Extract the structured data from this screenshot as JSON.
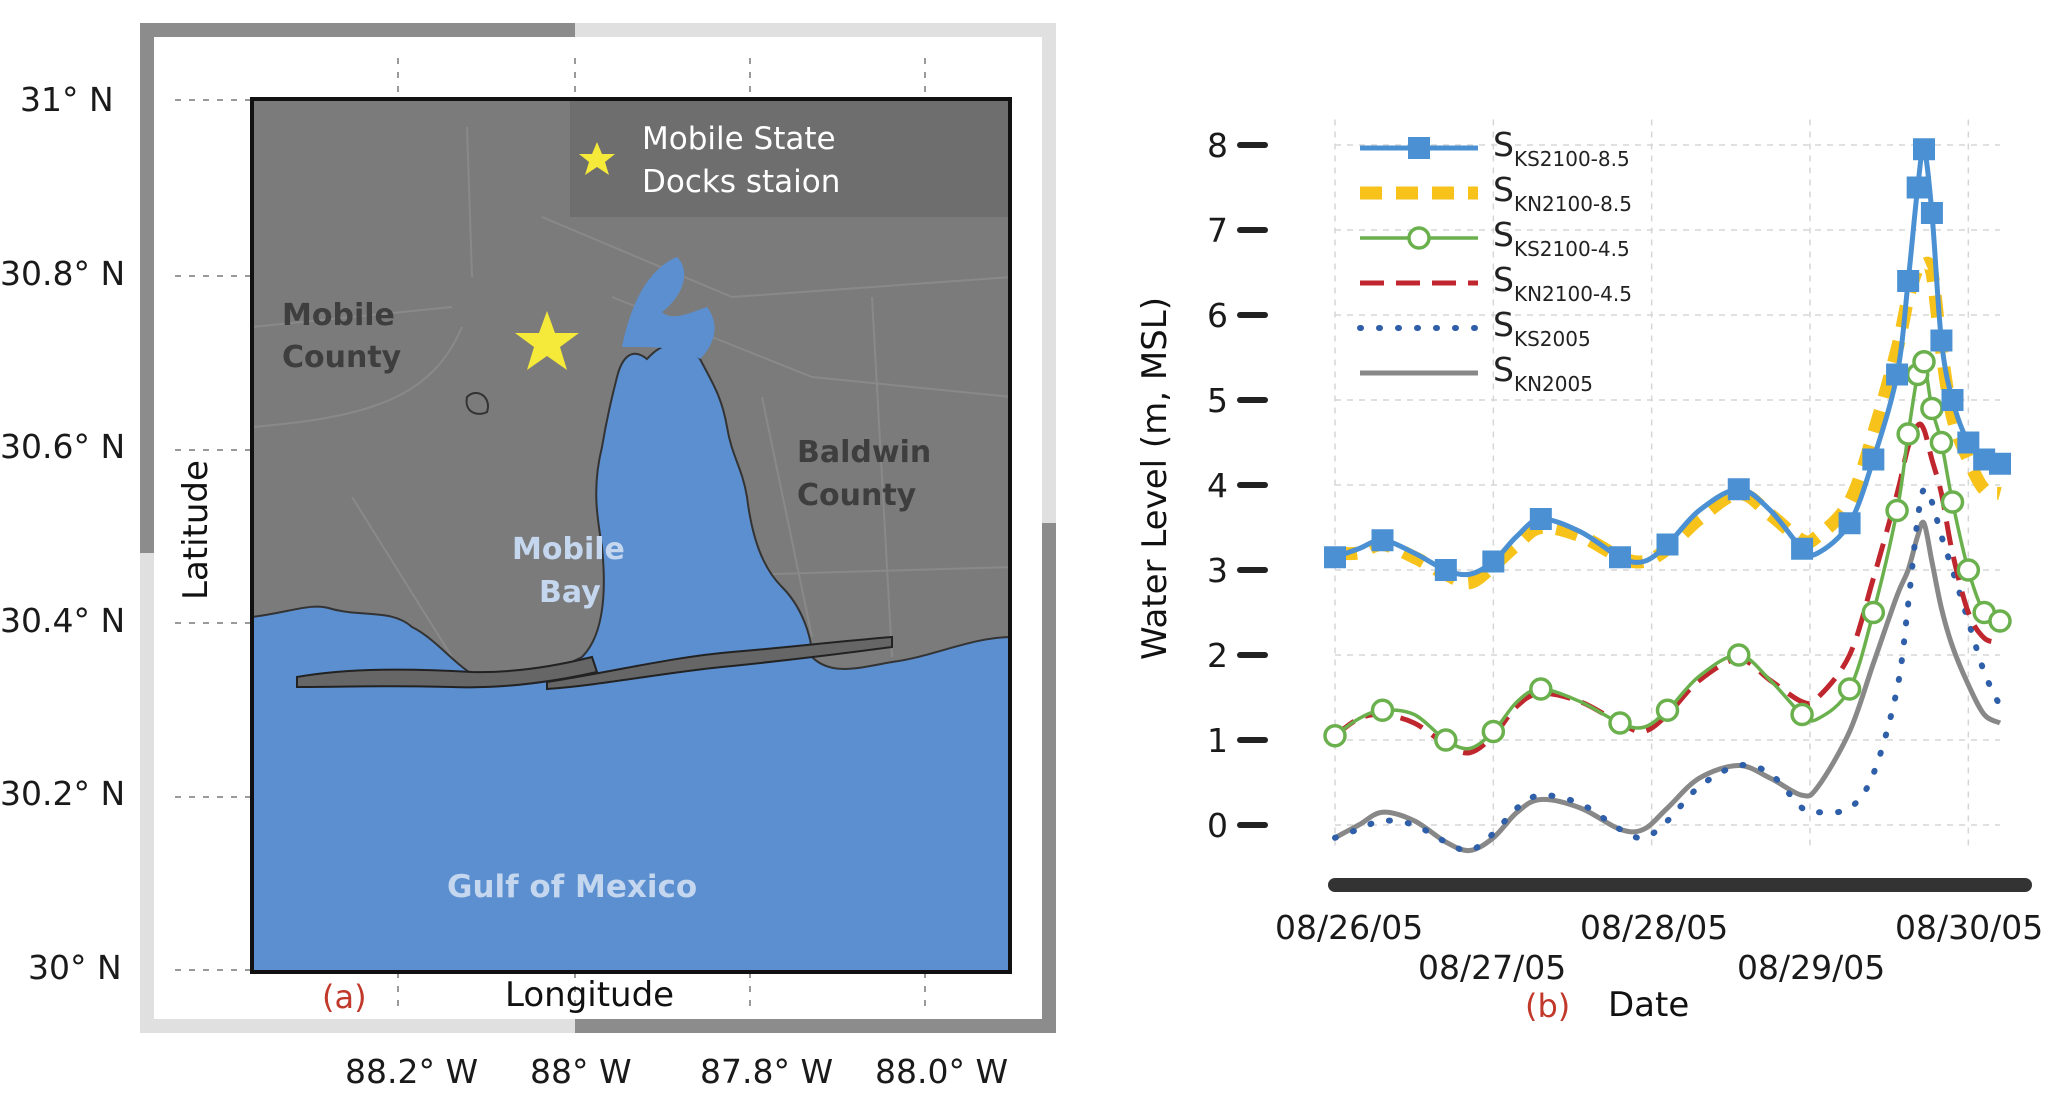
{
  "map": {
    "panel_label": "(a)",
    "xlabel": "Longitude",
    "ylabel": "Latitude",
    "lat_ticks": [
      "31° N",
      "30.8° N",
      "30.6° N",
      "30.4° N",
      "30.2° N",
      "30° N"
    ],
    "lon_ticks": [
      "88.2° W",
      "88° W",
      "87.8° W",
      "88.0° W"
    ],
    "legend_text_line1": "Mobile State",
    "legend_text_line2": "Docks staion",
    "labels": {
      "mobile_county_1": "Mobile",
      "mobile_county_2": "County",
      "baldwin_county_1": "Baldwin",
      "baldwin_county_2": "County",
      "mobile_bay_1": "Mobile",
      "mobile_bay_2": "Bay",
      "gulf": "Gulf of Mexico"
    },
    "colors": {
      "water": "#5b8fcf",
      "land": "#7b7b7b",
      "star": "#f5e93a"
    }
  },
  "chart": {
    "panel_label": "(b)",
    "xlabel": "Date",
    "ylabel": "Water Level (m, MSL)",
    "y_ticks": [
      "0",
      "1",
      "2",
      "3",
      "4",
      "5",
      "6",
      "7",
      "8"
    ],
    "x_ticks_upper": [
      "08/26/05",
      "08/28/05",
      "08/30/05"
    ],
    "x_ticks_lower": [
      "08/27/05",
      "08/29/05"
    ],
    "legend": [
      {
        "main": "S",
        "sub": "KS2100-8.5"
      },
      {
        "main": "S",
        "sub": "KN2100-8.5"
      },
      {
        "main": "S",
        "sub": "KS2100-4.5"
      },
      {
        "main": "S",
        "sub": "KN2100-4.5"
      },
      {
        "main": "S",
        "sub": "KS2005"
      },
      {
        "main": "S",
        "sub": "KN2005"
      }
    ]
  },
  "chart_data": {
    "type": "line",
    "xlabel": "Date",
    "ylabel": "Water Level (m, MSL)",
    "ylim": [
      0,
      8
    ],
    "xlim": [
      "08/26/05",
      "08/30/05"
    ],
    "grid": true,
    "legend_position": "top-left",
    "x_ticks": [
      "08/26/05",
      "08/27/05",
      "08/28/05",
      "08/29/05",
      "08/30/05"
    ],
    "x_days": [
      0,
      0.15,
      0.3,
      0.5,
      0.7,
      0.85,
      1.0,
      1.15,
      1.3,
      1.55,
      1.8,
      1.95,
      2.1,
      2.3,
      2.55,
      2.75,
      2.95,
      3.05,
      3.25,
      3.4,
      3.55,
      3.62,
      3.68,
      3.72,
      3.77,
      3.83,
      3.9,
      4.0,
      4.1,
      4.2
    ],
    "series": [
      {
        "name": "S_KS2100-8.5",
        "color": "#4a90d2",
        "style": "solid-square",
        "values": [
          3.15,
          3.25,
          3.35,
          3.2,
          3.0,
          2.95,
          3.1,
          3.4,
          3.6,
          3.45,
          3.15,
          3.1,
          3.3,
          3.7,
          3.95,
          3.7,
          3.25,
          3.2,
          3.55,
          4.3,
          5.3,
          6.4,
          7.5,
          7.95,
          7.2,
          5.7,
          5.0,
          4.5,
          4.3,
          4.25
        ]
      },
      {
        "name": "S_KN2100-8.5",
        "color": "#f7c21a",
        "style": "thick-dash",
        "values": [
          3.2,
          3.2,
          3.3,
          3.15,
          2.95,
          2.85,
          3.05,
          3.3,
          3.5,
          3.4,
          3.15,
          3.1,
          3.25,
          3.6,
          3.9,
          3.65,
          3.35,
          3.4,
          3.8,
          4.6,
          5.6,
          6.2,
          6.55,
          6.6,
          6.5,
          5.6,
          4.8,
          4.3,
          3.95,
          3.9
        ]
      },
      {
        "name": "S_KS2100-4.5",
        "color": "#6ab04c",
        "style": "solid-circle",
        "values": [
          1.05,
          1.25,
          1.35,
          1.3,
          1.0,
          0.9,
          1.1,
          1.45,
          1.6,
          1.45,
          1.2,
          1.15,
          1.35,
          1.75,
          2.0,
          1.7,
          1.3,
          1.25,
          1.6,
          2.5,
          3.7,
          4.6,
          5.3,
          5.45,
          4.9,
          4.5,
          3.8,
          3.0,
          2.5,
          2.4
        ]
      },
      {
        "name": "S_KN2100-4.5",
        "color": "#c0262d",
        "style": "dash",
        "values": [
          1.05,
          1.25,
          1.3,
          1.2,
          0.95,
          0.85,
          1.05,
          1.4,
          1.55,
          1.45,
          1.2,
          1.1,
          1.3,
          1.7,
          1.95,
          1.7,
          1.45,
          1.5,
          2.0,
          2.9,
          3.9,
          4.45,
          4.7,
          4.65,
          4.3,
          3.9,
          3.2,
          2.5,
          2.2,
          2.15
        ]
      },
      {
        "name": "S_KS2005",
        "color": "#2e5fa8",
        "style": "dotted",
        "values": [
          -0.15,
          -0.05,
          0.05,
          0.0,
          -0.2,
          -0.3,
          -0.1,
          0.2,
          0.35,
          0.25,
          -0.05,
          -0.15,
          0.05,
          0.45,
          0.7,
          0.6,
          0.2,
          0.15,
          0.2,
          0.6,
          1.6,
          2.6,
          3.6,
          3.95,
          3.8,
          3.4,
          3.0,
          2.4,
          1.8,
          1.4
        ]
      },
      {
        "name": "S_KN2005",
        "color": "#888888",
        "style": "solid",
        "values": [
          -0.15,
          0.0,
          0.15,
          0.05,
          -0.2,
          -0.3,
          -0.15,
          0.15,
          0.3,
          0.2,
          -0.05,
          -0.05,
          0.2,
          0.55,
          0.7,
          0.55,
          0.35,
          0.45,
          1.1,
          1.9,
          2.7,
          3.0,
          3.4,
          3.55,
          3.1,
          2.55,
          2.1,
          1.65,
          1.3,
          1.2
        ]
      }
    ]
  }
}
